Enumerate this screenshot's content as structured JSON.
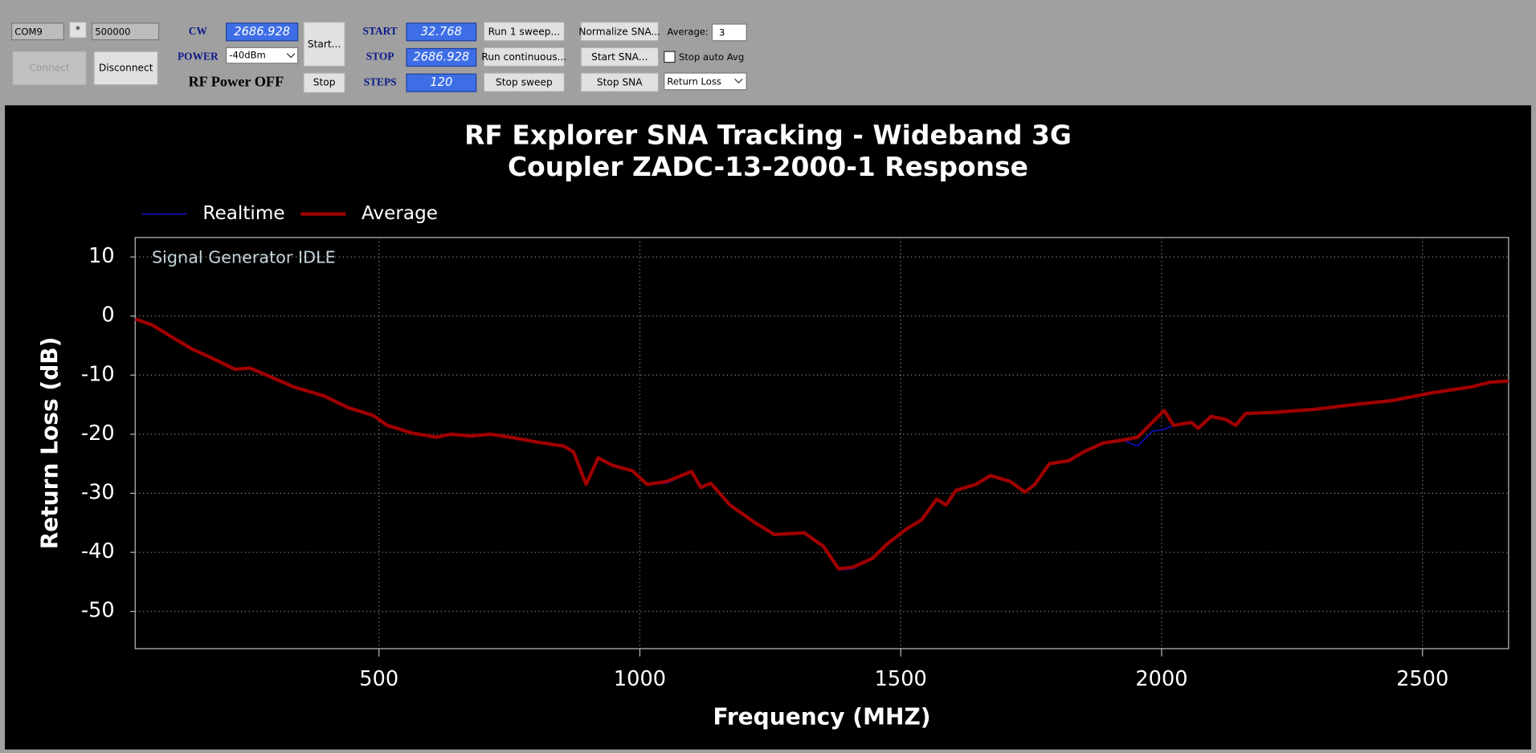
{
  "toolbar": {
    "port": "COM9",
    "star": "*",
    "baud": "500000",
    "connect": "Connect",
    "disconnect": "Disconnect",
    "cw_label": "CW",
    "cw_value": "2686.928",
    "power_label": "POWER",
    "power_value": "-40dBm",
    "rf_status": "RF Power OFF",
    "start_btn": "Start...",
    "stop_btn": "Stop",
    "start_label": "START",
    "start_value": "32.768",
    "stop_label": "STOP",
    "stop_value": "2686.928",
    "steps_label": "STEPS",
    "steps_value": "120",
    "run1": "Run 1 sweep...",
    "run_cont": "Run continuous...",
    "stop_sweep": "Stop sweep",
    "normalize": "Normalize SNA...",
    "start_sna": "Start SNA...",
    "stop_sna": "Stop SNA",
    "average_label": "Average:",
    "average_value": "3",
    "stop_auto_avg": "Stop auto Avg",
    "mode": "Return Loss"
  },
  "chart_data": {
    "type": "line",
    "title": "RF Explorer SNA Tracking - Wideband 3G",
    "subtitle": "Coupler ZADC-13-2000-1 Response",
    "annotation": "Signal Generator IDLE",
    "x_label": "Frequency (MHZ)",
    "y_label": "Return Loss (dB)",
    "x": [
      33,
      65,
      102,
      140,
      177,
      224,
      253,
      290,
      337,
      394,
      441,
      488,
      516,
      563,
      610,
      638,
      676,
      713,
      751,
      807,
      854,
      873,
      897,
      920,
      948,
      986,
      1014,
      1052,
      1099,
      1117,
      1136,
      1173,
      1221,
      1258,
      1315,
      1352,
      1381,
      1409,
      1446,
      1475,
      1512,
      1540,
      1569,
      1587,
      1606,
      1644,
      1672,
      1710,
      1738,
      1757,
      1785,
      1822,
      1850,
      1888,
      1925,
      1954,
      1982,
      2005,
      2023,
      2057,
      2070,
      2095,
      2123,
      2142,
      2161,
      2217,
      2292,
      2367,
      2442,
      2518,
      2593,
      2630,
      2665
    ],
    "series": [
      {
        "name": "Realtime",
        "color": "#1010d0",
        "values": [
          -0.5,
          -1.5,
          -3.5,
          -5.5,
          -7,
          -9,
          -8.8,
          -10.2,
          -12,
          -13.5,
          -15.5,
          -16.8,
          -18.5,
          -19.8,
          -20.5,
          -20,
          -20.3,
          -20,
          -20.5,
          -21.4,
          -22,
          -23,
          -28.5,
          -24,
          -25.3,
          -26.2,
          -28.5,
          -28.3,
          -26.3,
          -29,
          -28.3,
          -32,
          -35,
          -37,
          -36.7,
          -39,
          -43,
          -42.8,
          -41,
          -38.5,
          -36,
          -34.5,
          -31,
          -32,
          -29.5,
          -28.5,
          -27,
          -28,
          -29.8,
          -28.5,
          -25,
          -24.5,
          -23,
          -21.5,
          -21,
          -22,
          -19.5,
          -19.2,
          -18.5,
          -18,
          -19,
          -17,
          -17.5,
          -18.5,
          -16.5,
          -16.3,
          -15.8,
          -15,
          -14.3,
          -13,
          -12,
          -11.2,
          -11
        ]
      },
      {
        "name": "Average",
        "color": "#a00000",
        "values": [
          -0.5,
          -1.5,
          -3.5,
          -5.5,
          -7,
          -9,
          -8.8,
          -10.2,
          -12,
          -13.5,
          -15.5,
          -16.8,
          -18.5,
          -19.8,
          -20.5,
          -20,
          -20.3,
          -20,
          -20.5,
          -21.4,
          -22,
          -23,
          -28.5,
          -24,
          -25.3,
          -26.2,
          -28.5,
          -28,
          -26.3,
          -29,
          -28.3,
          -32,
          -35,
          -37,
          -36.7,
          -39,
          -42.8,
          -42.5,
          -41,
          -38.5,
          -36,
          -34.5,
          -31,
          -32,
          -29.5,
          -28.5,
          -27,
          -28,
          -29.8,
          -28.5,
          -25,
          -24.5,
          -23,
          -21.5,
          -21,
          -20.5,
          -18,
          -16,
          -18.5,
          -18,
          -19,
          -17,
          -17.5,
          -18.5,
          -16.5,
          -16.3,
          -15.8,
          -15,
          -14.3,
          -13,
          -12,
          -11.2,
          -11
        ]
      }
    ],
    "xlim": [
      32.768,
      2665
    ],
    "ylim": [
      -56.3,
      13.3
    ],
    "xticks": [
      500,
      1000,
      1500,
      2000,
      2500
    ],
    "yticks": [
      -50,
      -40,
      -30,
      -20,
      -10,
      0,
      10
    ],
    "grid": true,
    "legend": "top-left"
  }
}
